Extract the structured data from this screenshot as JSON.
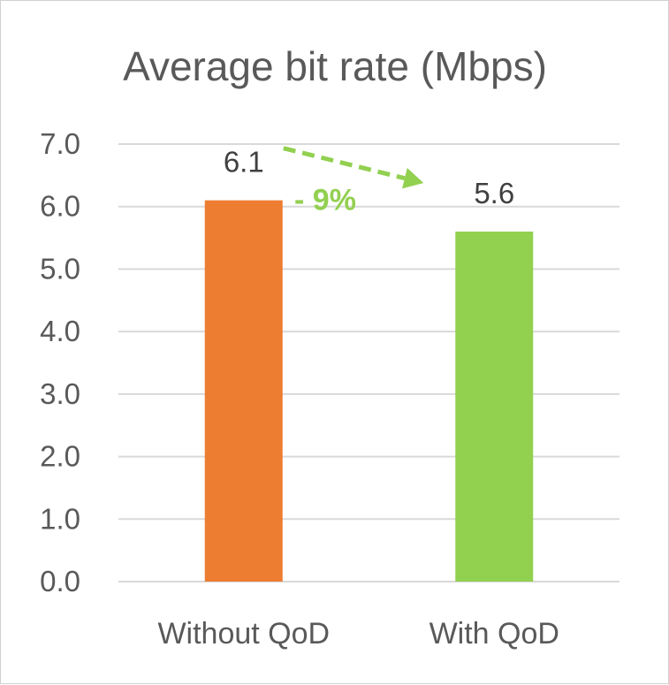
{
  "chart_data": {
    "type": "bar",
    "title": "Average bit rate (Mbps)",
    "categories": [
      "Without QoD",
      "With QoD"
    ],
    "values": [
      6.1,
      5.6
    ],
    "data_labels": [
      "6.1",
      "5.6"
    ],
    "bar_colors": [
      "#ED7D31",
      "#92D050"
    ],
    "ylim": [
      0,
      7
    ],
    "yticks": [
      "0.0",
      "1.0",
      "2.0",
      "3.0",
      "4.0",
      "5.0",
      "6.0",
      "7.0"
    ],
    "grid": true,
    "legend": "none",
    "annotation": {
      "text": "- 9%",
      "color": "#92D050"
    }
  }
}
